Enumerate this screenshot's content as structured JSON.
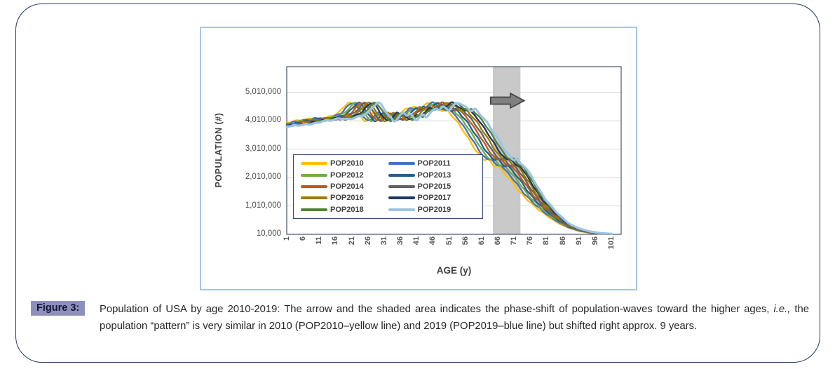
{
  "figure": {
    "label": "Figure 3:",
    "label_highlight_color": "#8D90BA",
    "caption_before_italic": "Population of USA by age 2010-2019: The arrow and the shaded area indicates the phase-shift of population-waves toward the higher ages, ",
    "caption_italic": "i.e.,",
    "caption_after_italic": " the population “pattern” is very similar in 2010 (POP2010–yellow line) and 2019 (POP2019–blue line) but shifted right approx. 9 years."
  },
  "chart_data": {
    "type": "line",
    "title": "",
    "xlabel": "AGE (y)",
    "ylabel": "POPULATION (#)",
    "xlim": [
      1,
      101
    ],
    "ylim": [
      10000,
      5920000
    ],
    "grid": "horizontal",
    "legend_position": "inside-left-middle",
    "x_ticks": [
      1,
      6,
      11,
      16,
      21,
      26,
      31,
      36,
      41,
      46,
      51,
      56,
      61,
      66,
      71,
      76,
      81,
      86,
      91,
      96,
      101
    ],
    "y_ticks": [
      {
        "value": 10000,
        "label": "10,000"
      },
      {
        "value": 1010000,
        "label": "1,010,000"
      },
      {
        "value": 2010000,
        "label": "2,010,000"
      },
      {
        "value": 3010000,
        "label": "3,010,000"
      },
      {
        "value": 4010000,
        "label": "4,010,000"
      },
      {
        "value": 5010000,
        "label": "5,010,000"
      }
    ],
    "series": [
      {
        "name": "POP2010",
        "color": "#FFC000",
        "shift_years": 0
      },
      {
        "name": "POP2011",
        "color": "#4472C4",
        "shift_years": 1
      },
      {
        "name": "POP2012",
        "color": "#70AD47",
        "shift_years": 2
      },
      {
        "name": "POP2013",
        "color": "#255E91",
        "shift_years": 3
      },
      {
        "name": "POP2014",
        "color": "#C55A11",
        "shift_years": 4
      },
      {
        "name": "POP2015",
        "color": "#636363",
        "shift_years": 5
      },
      {
        "name": "POP2016",
        "color": "#9E7B00",
        "shift_years": 6
      },
      {
        "name": "POP2017",
        "color": "#1F3864",
        "shift_years": 7
      },
      {
        "name": "POP2018",
        "color": "#538135",
        "shift_years": 8
      },
      {
        "name": "POP2019",
        "color": "#9DC3E6",
        "shift_years": 9
      }
    ],
    "base_curve_pop2010": {
      "age_start": 1,
      "age_step": 1,
      "values_millions": [
        3.92,
        3.96,
        4.0,
        4.01,
        4.02,
        4.04,
        4.06,
        4.08,
        4.1,
        4.08,
        4.06,
        4.09,
        4.12,
        4.15,
        4.18,
        4.24,
        4.3,
        4.43,
        4.55,
        4.66,
        4.6,
        4.44,
        4.25,
        4.12,
        3.98,
        4.06,
        4.2,
        4.32,
        4.18,
        4.28,
        4.1,
        4.02,
        4.16,
        4.24,
        4.12,
        4.28,
        4.36,
        4.46,
        4.4,
        4.52,
        4.44,
        4.38,
        4.52,
        4.6,
        4.66,
        4.58,
        4.5,
        4.42,
        4.35,
        4.45,
        4.3,
        4.18,
        4.05,
        3.9,
        3.72,
        3.55,
        3.38,
        3.2,
        3.0,
        2.85,
        2.72,
        2.62,
        2.7,
        2.52,
        2.4,
        2.46,
        2.32,
        2.18,
        2.05,
        1.92,
        1.78,
        1.62,
        1.48,
        1.36,
        1.24,
        1.14,
        1.04,
        0.94,
        0.85,
        0.76,
        0.68,
        0.6,
        0.52,
        0.45,
        0.39,
        0.33,
        0.28,
        0.235,
        0.195,
        0.16,
        0.13,
        0.105,
        0.085,
        0.068,
        0.054,
        0.043,
        0.035,
        0.028,
        0.023,
        0.019,
        0.016
      ]
    },
    "annotations": {
      "shaded_band": {
        "age_start": 64.5,
        "age_end": 73.0,
        "color": "#C9C9C9"
      },
      "arrow": {
        "direction": "right",
        "age_start": 63.8,
        "age_end": 74.2,
        "at_value": 4720000,
        "fill": "#808080",
        "outline": "#404040"
      }
    }
  }
}
